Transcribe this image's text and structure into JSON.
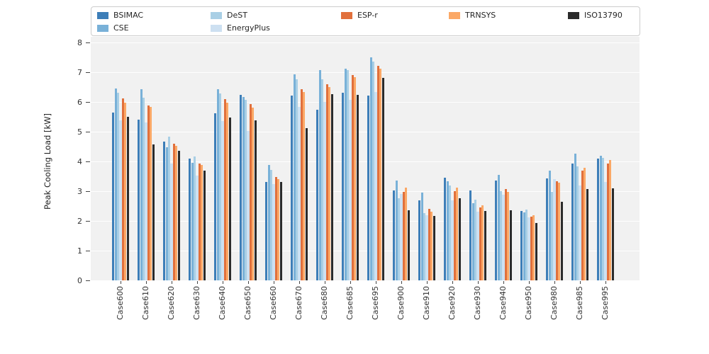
{
  "chart_data": {
    "type": "bar",
    "title": "",
    "xlabel": "",
    "ylabel": "Peak Cooling Load [kW]",
    "ylim": [
      0,
      8
    ],
    "yticks": [
      0,
      1,
      2,
      3,
      4,
      5,
      6,
      7,
      8
    ],
    "grid": true,
    "legend_position": "top",
    "categories": [
      "Case600",
      "Case610",
      "Case620",
      "Case630",
      "Case640",
      "Case650",
      "Case660",
      "Case670",
      "Case680",
      "Case685",
      "Case695",
      "Case900",
      "Case910",
      "Case920",
      "Case930",
      "Case940",
      "Case950",
      "Case980",
      "Case985",
      "Case995"
    ],
    "series": [
      {
        "name": "BSIMAC",
        "color": "#3d7eb8",
        "values": [
          5.64,
          5.41,
          4.67,
          4.1,
          5.63,
          6.25,
          3.31,
          6.21,
          5.74,
          6.32,
          6.22,
          3.02,
          2.68,
          3.46,
          3.02,
          3.36,
          2.33,
          3.43,
          3.94,
          4.1
        ]
      },
      {
        "name": "CSE",
        "color": "#79b1d8",
        "values": [
          6.45,
          6.43,
          4.47,
          3.96,
          6.42,
          6.17,
          3.88,
          6.92,
          7.06,
          7.13,
          7.51,
          3.36,
          2.95,
          3.33,
          2.59,
          3.54,
          2.28,
          3.68,
          4.27,
          4.19
        ]
      },
      {
        "name": "DeST",
        "color": "#a9cfe5",
        "values": [
          6.31,
          6.14,
          4.84,
          4.16,
          6.29,
          6.08,
          3.72,
          6.76,
          6.77,
          7.07,
          7.35,
          2.76,
          2.26,
          3.2,
          2.72,
          3.0,
          2.37,
          2.97,
          3.83,
          4.13
        ]
      },
      {
        "name": "EnergyPlus",
        "color": "#cde0f1",
        "values": [
          5.39,
          5.31,
          3.92,
          3.52,
          5.35,
          5.03,
          3.25,
          5.84,
          6.01,
          6.08,
          6.34,
          2.91,
          2.19,
          2.69,
          2.3,
          2.88,
          2.12,
          3.4,
          3.2,
          3.3
        ]
      },
      {
        "name": "ESP-r",
        "color": "#e1703c",
        "values": [
          6.12,
          5.89,
          4.59,
          3.92,
          6.1,
          5.93,
          3.47,
          6.42,
          6.59,
          6.91,
          7.21,
          2.98,
          2.4,
          3.01,
          2.46,
          3.07,
          2.15,
          3.33,
          3.7,
          3.93
        ]
      },
      {
        "name": "TRNSYS",
        "color": "#fba866",
        "values": [
          5.98,
          5.83,
          4.52,
          3.89,
          5.97,
          5.8,
          3.41,
          6.34,
          6.49,
          6.84,
          7.13,
          3.11,
          2.32,
          3.11,
          2.52,
          2.97,
          2.2,
          3.28,
          3.78,
          4.05
        ]
      },
      {
        "name": "ISO13790",
        "color": "#2b2b2b",
        "values": [
          5.5,
          4.58,
          4.35,
          3.7,
          5.47,
          5.37,
          3.31,
          5.13,
          6.27,
          6.24,
          6.82,
          2.35,
          2.16,
          2.76,
          2.33,
          2.36,
          1.92,
          2.65,
          3.06,
          3.1
        ]
      }
    ]
  },
  "legend": {
    "entries": [
      "BSIMAC",
      "CSE",
      "DeST",
      "EnergyPlus",
      "ESP-r",
      "TRNSYS",
      "ISO13790"
    ]
  }
}
